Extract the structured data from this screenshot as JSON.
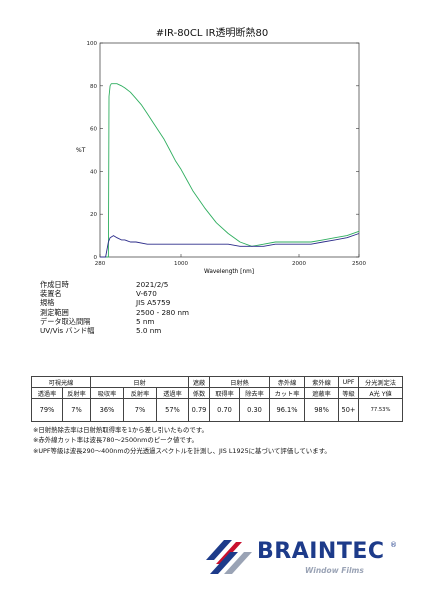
{
  "title": "#IR-80CL IR透明断熱80",
  "chart_data": {
    "type": "line",
    "xlabel": "Wavelength [nm]",
    "ylabel": "%T",
    "xlim": [
      280,
      2500
    ],
    "ylim": [
      0,
      100
    ],
    "x_scale": "piecewise",
    "x_ticks": [
      280,
      1000,
      2000,
      2500
    ],
    "y_ticks": [
      0,
      20,
      40,
      60,
      80,
      100
    ],
    "grid": false,
    "series": [
      {
        "color": "#2fae5f",
        "x": [
          280,
          330,
          355,
          360,
          370,
          380,
          400,
          430,
          470,
          500,
          550,
          600,
          650,
          700,
          750,
          800,
          850,
          900,
          950,
          1000,
          1050,
          1100,
          1150,
          1200,
          1300,
          1400,
          1500,
          1600,
          1700,
          1800,
          1900,
          2000,
          2100,
          2200,
          2300,
          2400,
          2500
        ],
        "y": [
          0,
          0,
          0,
          75,
          80,
          81,
          81,
          81,
          80,
          79,
          77,
          74,
          71,
          67,
          63,
          59,
          55,
          50,
          45,
          41,
          36,
          31,
          27,
          23,
          16,
          11,
          7,
          5,
          6,
          7,
          7,
          7,
          7,
          8,
          9,
          10,
          12
        ]
      },
      {
        "color": "#2c2c8a",
        "x": [
          280,
          330,
          355,
          370,
          400,
          430,
          470,
          500,
          550,
          600,
          700,
          800,
          900,
          1000,
          1100,
          1200,
          1300,
          1400,
          1500,
          1600,
          1700,
          1800,
          1900,
          2000,
          2100,
          2200,
          2300,
          2400,
          2500
        ],
        "y": [
          0,
          0,
          7,
          9,
          10,
          9,
          8,
          8,
          7,
          7,
          6,
          6,
          6,
          6,
          6,
          6,
          6,
          6,
          5,
          5,
          5,
          6,
          6,
          6,
          6,
          7,
          8,
          9,
          11
        ]
      }
    ]
  },
  "info": [
    {
      "key": "作成日時",
      "value": "2021/2/5"
    },
    {
      "key": "装置名",
      "value": "V-670"
    },
    {
      "key": "規格",
      "value": "JIS A5759"
    },
    {
      "key": "測定範囲",
      "value": "2500 - 280 nm"
    },
    {
      "key": "データ取込間隔",
      "value": "5 nm"
    },
    {
      "key": "UV/Vis バンド幅",
      "value": "5.0 nm"
    }
  ],
  "table": {
    "groups": [
      "可視光線",
      "日射",
      "遮蔽",
      "日射熱",
      "赤外線",
      "紫外線",
      "UPF",
      "分光測定法"
    ],
    "subheaders": [
      "透過率",
      "反射率",
      "吸収率",
      "反射率",
      "透過率",
      "係数",
      "取得率",
      "除去率",
      "カット率",
      "遮蔽率",
      "等級",
      "A光 Y値"
    ],
    "values": [
      "79%",
      "7%",
      "36%",
      "7%",
      "57%",
      "0.79",
      "0.70",
      "0.30",
      "96.1%",
      "98%",
      "50+",
      "77.53%"
    ]
  },
  "notes": [
    "※日射熱除去率は日射熱取得率を1から差し引いたものです。",
    "※赤外線カット率は波長780〜2500nmのピーク値です。",
    "※UPF等級は波長290〜400nmの分光透過スペクトルを計測し、JIS L1925に基づいて評価しています。"
  ],
  "logo": {
    "brand": "BRAINTEC",
    "registered": "®",
    "tagline": "Window Films",
    "colors": [
      "#1d3b8a",
      "#c8102e",
      "#9aa3b5"
    ]
  }
}
